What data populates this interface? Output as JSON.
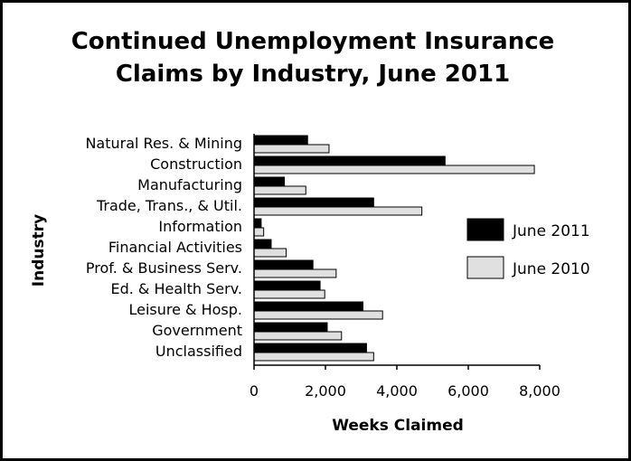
{
  "chart_data": {
    "type": "bar",
    "orientation": "horizontal",
    "title_lines": [
      "Continued Unemployment Insurance",
      "Claims by Industry, June 2011"
    ],
    "xlabel": "Weeks Claimed",
    "ylabel": "Industry",
    "xlim": [
      0,
      8000
    ],
    "xticks": [
      0,
      2000,
      4000,
      6000,
      8000
    ],
    "xtick_labels": [
      "0",
      "2,000",
      "4,000",
      "6,000",
      "8,000"
    ],
    "grid": false,
    "legend_position": "right",
    "categories": [
      "Natural Res. & Mining",
      "Construction",
      "Manufacturing",
      "Trade, Trans., & Util.",
      "Information",
      "Financial Activities",
      "Prof. & Business Serv.",
      "Ed. & Health Serv.",
      "Leisure & Hosp.",
      "Government",
      "Unclassified"
    ],
    "series": [
      {
        "name": "June 2011",
        "color": "#000000",
        "values": [
          1500,
          5350,
          850,
          3350,
          200,
          480,
          1650,
          1850,
          3050,
          2050,
          3150
        ]
      },
      {
        "name": "June 2010",
        "color": "#e0e0e0",
        "values": [
          2100,
          7850,
          1450,
          4700,
          270,
          900,
          2300,
          1980,
          3600,
          2450,
          3350
        ]
      }
    ]
  }
}
